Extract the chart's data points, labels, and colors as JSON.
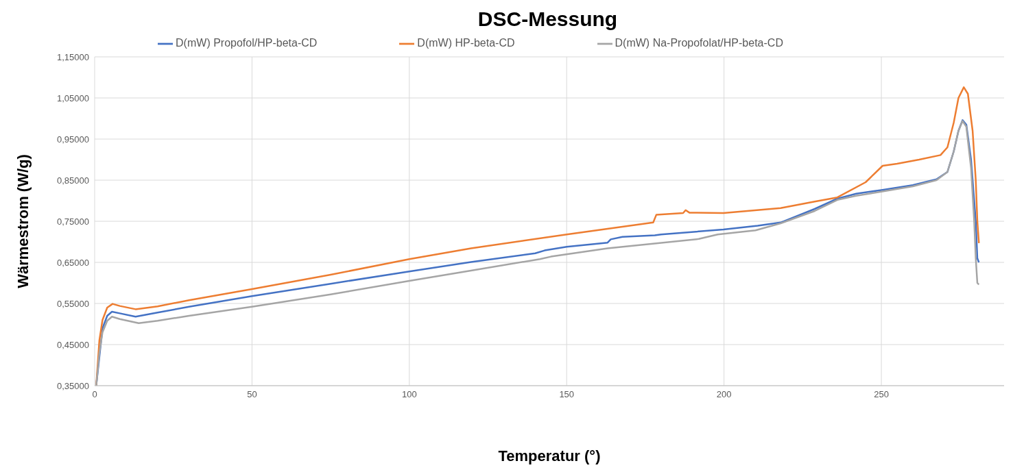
{
  "chart_data": {
    "type": "line",
    "title": "DSC-Messung",
    "xlabel": "Temperatur (°)",
    "ylabel": "Wärmestrom (W/g)",
    "xlim": [
      0,
      289
    ],
    "xticks": [
      0,
      50,
      100,
      150,
      200,
      250
    ],
    "ylim": [
      0.35,
      1.15
    ],
    "yticks": [
      {
        "value": 0.35,
        "label": "0,35000"
      },
      {
        "value": 0.45,
        "label": "0,45000"
      },
      {
        "value": 0.55,
        "label": "0,55000"
      },
      {
        "value": 0.65,
        "label": "0,65000"
      },
      {
        "value": 0.75,
        "label": "0,75000"
      },
      {
        "value": 0.85,
        "label": "0,85000"
      },
      {
        "value": 0.95,
        "label": "0,95000"
      },
      {
        "value": 1.05,
        "label": "1,05000"
      },
      {
        "value": 1.15,
        "label": "1,15000"
      }
    ],
    "grid": true,
    "legend": "top",
    "marker": "none",
    "line_style": "solid",
    "series": [
      {
        "name": "D(mW) Propofol/HP-beta-CD",
        "color": "#4472c4",
        "x": [
          0.5,
          2.5,
          4,
          5.5,
          8,
          13,
          20,
          30,
          50,
          75,
          100,
          119.6,
          140,
          143,
          150,
          163,
          164,
          167.7,
          178,
          180,
          199.8,
          210.7,
          218,
          228.8,
          236,
          242,
          250,
          260,
          267.5,
          271,
          273,
          274.5,
          275.8,
          277,
          278.5,
          280,
          280.5,
          281
        ],
        "values": [
          0.35,
          0.49,
          0.52,
          0.53,
          0.526,
          0.518,
          0.528,
          0.542,
          0.568,
          0.598,
          0.628,
          0.651,
          0.672,
          0.679,
          0.688,
          0.698,
          0.706,
          0.712,
          0.716,
          0.718,
          0.73,
          0.739,
          0.747,
          0.78,
          0.805,
          0.817,
          0.826,
          0.838,
          0.852,
          0.87,
          0.92,
          0.97,
          0.996,
          0.985,
          0.9,
          0.75,
          0.66,
          0.65
        ]
      },
      {
        "name": "D(mW) HP-beta-CD",
        "color": "#ed7d31",
        "x": [
          0.5,
          1.5,
          2.5,
          4,
          5.7,
          8,
          13,
          20,
          30,
          50,
          75,
          100,
          119.6,
          150,
          177.5,
          178.5,
          187,
          187.8,
          189,
          199.8,
          218,
          228.8,
          236,
          245,
          250.4,
          255,
          262,
          268.8,
          271,
          273,
          274.5,
          276.2,
          277.5,
          279,
          280,
          280.5,
          281
        ],
        "values": [
          0.35,
          0.46,
          0.51,
          0.54,
          0.549,
          0.544,
          0.536,
          0.543,
          0.558,
          0.585,
          0.62,
          0.658,
          0.684,
          0.718,
          0.747,
          0.766,
          0.77,
          0.777,
          0.771,
          0.77,
          0.782,
          0.798,
          0.808,
          0.845,
          0.885,
          0.89,
          0.9,
          0.911,
          0.93,
          0.99,
          1.05,
          1.076,
          1.06,
          0.97,
          0.85,
          0.75,
          0.697
        ]
      },
      {
        "name": "D(mW) Na-Propofolat/HP-beta-CD",
        "color": "#a5a5a5",
        "x": [
          0.5,
          1.5,
          2.5,
          4,
          5.5,
          8,
          14,
          20,
          30,
          50,
          75,
          100,
          119.6,
          141.5,
          145,
          163,
          192,
          198,
          210,
          218,
          228.8,
          236,
          242,
          250,
          260,
          267.5,
          271,
          273,
          274.5,
          275.8,
          277,
          278.5,
          279.5,
          280,
          280.5,
          281
        ],
        "values": [
          0.35,
          0.43,
          0.48,
          0.508,
          0.518,
          0.512,
          0.502,
          0.508,
          0.52,
          0.542,
          0.572,
          0.605,
          0.63,
          0.658,
          0.664,
          0.684,
          0.707,
          0.718,
          0.728,
          0.745,
          0.775,
          0.802,
          0.812,
          0.822,
          0.835,
          0.85,
          0.87,
          0.92,
          0.97,
          0.994,
          0.98,
          0.88,
          0.75,
          0.66,
          0.6,
          0.596
        ]
      }
    ]
  }
}
